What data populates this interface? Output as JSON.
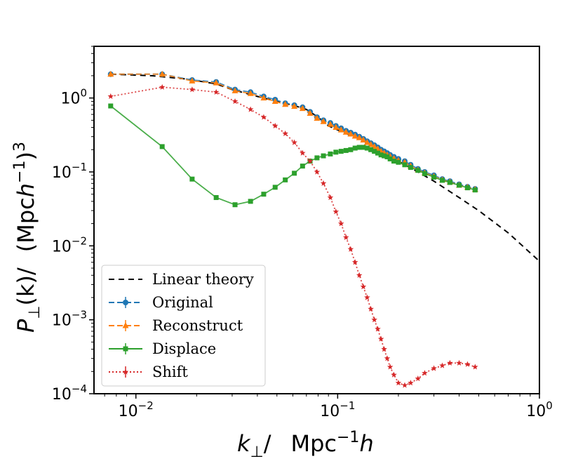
{
  "chart_data": {
    "type": "line",
    "xscale": "log",
    "yscale": "log",
    "xlim": [
      0.0062,
      1.0
    ],
    "ylim": [
      0.0001,
      5.0
    ],
    "xticks": [
      {
        "value": 0.01,
        "base": "10",
        "exp": "−2"
      },
      {
        "value": 0.1,
        "base": "10",
        "exp": "−1"
      },
      {
        "value": 1.0,
        "base": "10",
        "exp": "0"
      }
    ],
    "yticks": [
      {
        "value": 0.0001,
        "base": "10",
        "exp": "−4"
      },
      {
        "value": 0.001,
        "base": "10",
        "exp": "−3"
      },
      {
        "value": 0.01,
        "base": "10",
        "exp": "−2"
      },
      {
        "value": 0.1,
        "base": "10",
        "exp": "−1"
      },
      {
        "value": 1.0,
        "base": "10",
        "exp": "0"
      }
    ],
    "xlabel": {
      "k": "k",
      "sub": "⊥",
      "slash": "/",
      "mpc": "Mpc",
      "sup": "−1",
      "h": "h"
    },
    "ylabel": {
      "p": "P",
      "sub": "⊥",
      "arg": "(k)/",
      "open": "(Mpc",
      "h": "h",
      "sup1": "−1",
      "close": ")",
      "sup3": "3"
    },
    "legend_position": "lower-left",
    "series": [
      {
        "name": "Linear theory",
        "color": "#000000",
        "dash": "8,6",
        "marker": "none",
        "x": [
          0.0075,
          0.012,
          0.018,
          0.025,
          0.03,
          0.04,
          0.05,
          0.06,
          0.07,
          0.08,
          0.09,
          0.1,
          0.12,
          0.14,
          0.16,
          0.2,
          0.25,
          0.3,
          0.4,
          0.5,
          0.7,
          1.0
        ],
        "y": [
          2.1,
          2.0,
          1.8,
          1.55,
          1.3,
          1.05,
          0.9,
          0.8,
          0.7,
          0.55,
          0.42,
          0.37,
          0.3,
          0.25,
          0.2,
          0.14,
          0.1,
          0.075,
          0.045,
          0.03,
          0.015,
          0.0062
        ]
      },
      {
        "name": "Original",
        "color": "#1f77b4",
        "dash": "8,4",
        "marker": "circle",
        "x": [
          0.0075,
          0.0135,
          0.019,
          0.025,
          0.031,
          0.037,
          0.043,
          0.049,
          0.055,
          0.061,
          0.067,
          0.073,
          0.079,
          0.085,
          0.092,
          0.098,
          0.104,
          0.11,
          0.116,
          0.122,
          0.128,
          0.134,
          0.14,
          0.146,
          0.152,
          0.158,
          0.164,
          0.17,
          0.176,
          0.182,
          0.19,
          0.2,
          0.215,
          0.23,
          0.25,
          0.27,
          0.3,
          0.33,
          0.36,
          0.4,
          0.44,
          0.48
        ],
        "y": [
          2.1,
          2.1,
          1.75,
          1.65,
          1.3,
          1.2,
          1.05,
          0.95,
          0.85,
          0.8,
          0.75,
          0.65,
          0.55,
          0.5,
          0.46,
          0.42,
          0.39,
          0.36,
          0.34,
          0.32,
          0.3,
          0.28,
          0.26,
          0.245,
          0.23,
          0.215,
          0.2,
          0.19,
          0.18,
          0.17,
          0.16,
          0.15,
          0.14,
          0.125,
          0.11,
          0.1,
          0.09,
          0.08,
          0.075,
          0.068,
          0.063,
          0.059
        ]
      },
      {
        "name": "Reconstruct",
        "color": "#ff7f0e",
        "dash": "8,4",
        "marker": "triangle",
        "x": [
          0.0075,
          0.0135,
          0.019,
          0.025,
          0.031,
          0.037,
          0.043,
          0.049,
          0.055,
          0.061,
          0.067,
          0.073,
          0.079,
          0.085,
          0.092,
          0.098,
          0.104,
          0.11,
          0.116,
          0.122,
          0.128,
          0.134,
          0.14,
          0.146,
          0.152,
          0.158,
          0.164,
          0.17,
          0.176,
          0.182,
          0.19,
          0.2,
          0.215,
          0.23,
          0.25,
          0.27,
          0.3,
          0.33,
          0.36,
          0.4,
          0.44,
          0.48
        ],
        "y": [
          2.1,
          2.1,
          1.7,
          1.6,
          1.25,
          1.15,
          1.0,
          0.9,
          0.82,
          0.77,
          0.72,
          0.62,
          0.53,
          0.48,
          0.44,
          0.4,
          0.37,
          0.345,
          0.325,
          0.305,
          0.29,
          0.27,
          0.25,
          0.235,
          0.22,
          0.205,
          0.19,
          0.18,
          0.17,
          0.162,
          0.152,
          0.143,
          0.135,
          0.12,
          0.106,
          0.097,
          0.087,
          0.078,
          0.073,
          0.066,
          0.062,
          0.058
        ]
      },
      {
        "name": "Displace",
        "color": "#2ca02c",
        "dash": "none",
        "marker": "square",
        "x": [
          0.0075,
          0.0135,
          0.019,
          0.025,
          0.031,
          0.037,
          0.043,
          0.049,
          0.055,
          0.061,
          0.067,
          0.073,
          0.079,
          0.085,
          0.092,
          0.098,
          0.104,
          0.11,
          0.116,
          0.122,
          0.128,
          0.134,
          0.14,
          0.146,
          0.152,
          0.158,
          0.164,
          0.17,
          0.176,
          0.182,
          0.19,
          0.2,
          0.215,
          0.23,
          0.25,
          0.27,
          0.3,
          0.33,
          0.36,
          0.4,
          0.44,
          0.48
        ],
        "y": [
          0.78,
          0.22,
          0.08,
          0.045,
          0.036,
          0.04,
          0.05,
          0.062,
          0.078,
          0.096,
          0.12,
          0.14,
          0.155,
          0.165,
          0.175,
          0.185,
          0.19,
          0.195,
          0.2,
          0.21,
          0.215,
          0.215,
          0.21,
          0.2,
          0.19,
          0.18,
          0.17,
          0.165,
          0.16,
          0.15,
          0.14,
          0.135,
          0.125,
          0.115,
          0.105,
          0.095,
          0.085,
          0.077,
          0.072,
          0.066,
          0.061,
          0.057
        ]
      },
      {
        "name": "Shift",
        "color": "#d62728",
        "dash": "2,3",
        "marker": "star",
        "x": [
          0.0075,
          0.0135,
          0.019,
          0.025,
          0.031,
          0.037,
          0.043,
          0.049,
          0.055,
          0.061,
          0.067,
          0.073,
          0.079,
          0.085,
          0.092,
          0.098,
          0.104,
          0.11,
          0.116,
          0.122,
          0.128,
          0.134,
          0.14,
          0.146,
          0.152,
          0.158,
          0.164,
          0.17,
          0.176,
          0.182,
          0.19,
          0.2,
          0.215,
          0.23,
          0.25,
          0.27,
          0.3,
          0.33,
          0.36,
          0.4,
          0.44,
          0.48
        ],
        "y": [
          1.05,
          1.4,
          1.3,
          1.2,
          0.9,
          0.7,
          0.55,
          0.42,
          0.33,
          0.25,
          0.18,
          0.14,
          0.1,
          0.07,
          0.045,
          0.029,
          0.02,
          0.013,
          0.009,
          0.006,
          0.004,
          0.0028,
          0.002,
          0.0014,
          0.001,
          0.00075,
          0.00055,
          0.0004,
          0.0003,
          0.00023,
          0.00018,
          0.00014,
          0.00013,
          0.00014,
          0.00016,
          0.00019,
          0.00022,
          0.00024,
          0.00026,
          0.00026,
          0.00025,
          0.00023
        ]
      }
    ]
  }
}
